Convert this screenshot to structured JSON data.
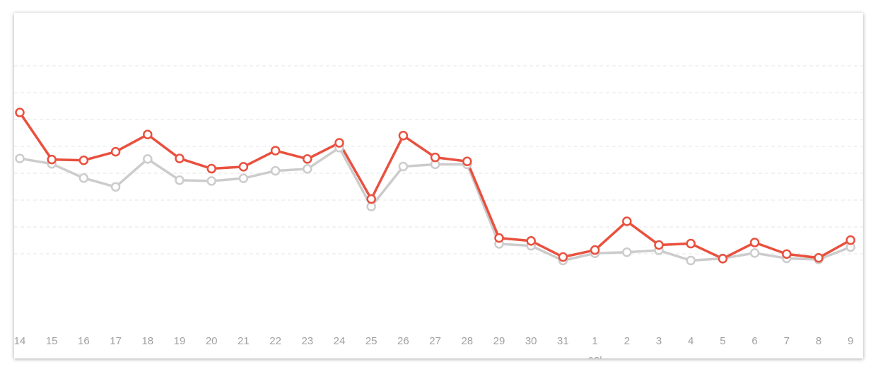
{
  "chart_data": {
    "type": "line",
    "categories": [
      "14",
      "15",
      "16",
      "17",
      "18",
      "19",
      "20",
      "21",
      "22",
      "23",
      "24",
      "25",
      "26",
      "27",
      "28",
      "29",
      "30",
      "31",
      "1",
      "2",
      "3",
      "4",
      "5",
      "6",
      "7",
      "8",
      "9"
    ],
    "month_label": "08l",
    "grid": true,
    "series": [
      {
        "color": "#e9503e",
        "values": [
          72.6,
          55.1,
          54.8,
          58.0,
          64.4,
          55.5,
          51.7,
          52.4,
          58.4,
          55.3,
          61.3,
          40.4,
          64.0,
          55.9,
          54.4,
          25.9,
          24.8,
          18.8,
          21.4,
          32.1,
          23.3,
          23.8,
          18.2,
          24.2,
          19.9,
          18.5,
          25.1
        ]
      },
      {
        "color": "#cccccc",
        "values": [
          55.5,
          53.5,
          48.2,
          44.9,
          55.3,
          47.4,
          47.1,
          48.1,
          50.9,
          51.6,
          59.5,
          37.6,
          52.5,
          53.3,
          53.3,
          23.7,
          23.0,
          17.5,
          20.2,
          20.6,
          21.3,
          17.5,
          18.3,
          20.3,
          18.3,
          17.9,
          22.5
        ]
      }
    ],
    "ylim": [
      0,
      100
    ]
  }
}
